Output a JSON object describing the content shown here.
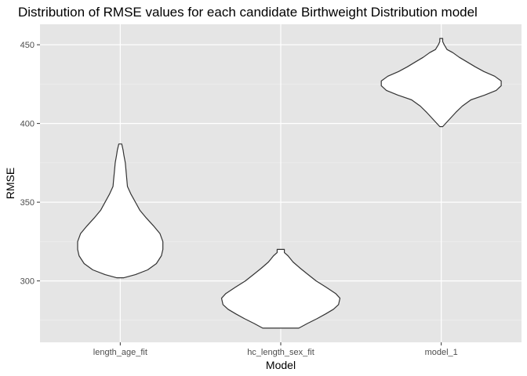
{
  "chart_data": {
    "type": "violin",
    "title": "Distribution of RMSE values for each candidate Birthweight Distribution model",
    "xlabel": "Model",
    "ylabel": "RMSE",
    "ylim": [
      261,
      463
    ],
    "yticks": [
      300,
      350,
      400,
      450
    ],
    "y_minor_ticks": [
      275,
      325,
      375,
      425
    ],
    "grid": true,
    "categories": [
      "length_age_fit",
      "hc_length_sex_fit",
      "model_1"
    ],
    "violins": [
      {
        "category": "length_age_fit",
        "min": 302,
        "max": 387,
        "profile": [
          [
            302,
            0.05
          ],
          [
            304,
            0.21
          ],
          [
            307,
            0.38
          ],
          [
            311,
            0.5
          ],
          [
            316,
            0.57
          ],
          [
            320,
            0.59
          ],
          [
            325,
            0.59
          ],
          [
            330,
            0.55
          ],
          [
            335,
            0.46
          ],
          [
            340,
            0.36
          ],
          [
            345,
            0.27
          ],
          [
            350,
            0.21
          ],
          [
            355,
            0.15
          ],
          [
            360,
            0.1
          ],
          [
            365,
            0.09
          ],
          [
            370,
            0.08
          ],
          [
            375,
            0.07
          ],
          [
            380,
            0.05
          ],
          [
            383,
            0.04
          ],
          [
            387,
            0.02
          ]
        ]
      },
      {
        "category": "hc_length_sex_fit",
        "min": 270,
        "max": 320,
        "profile": [
          [
            270,
            0.25
          ],
          [
            273,
            0.37
          ],
          [
            276,
            0.5
          ],
          [
            279,
            0.62
          ],
          [
            282,
            0.73
          ],
          [
            285,
            0.8
          ],
          [
            289,
            0.82
          ],
          [
            292,
            0.76
          ],
          [
            296,
            0.63
          ],
          [
            300,
            0.49
          ],
          [
            304,
            0.38
          ],
          [
            308,
            0.27
          ],
          [
            312,
            0.17
          ],
          [
            316,
            0.1
          ],
          [
            318,
            0.05
          ],
          [
            320,
            0.05
          ]
        ]
      },
      {
        "category": "model_1",
        "min": 398,
        "max": 454,
        "profile": [
          [
            398,
            0.02
          ],
          [
            400,
            0.06
          ],
          [
            403,
            0.12
          ],
          [
            407,
            0.2
          ],
          [
            411,
            0.29
          ],
          [
            415,
            0.41
          ],
          [
            418,
            0.6
          ],
          [
            421,
            0.76
          ],
          [
            424,
            0.83
          ],
          [
            427,
            0.83
          ],
          [
            430,
            0.74
          ],
          [
            433,
            0.59
          ],
          [
            436,
            0.47
          ],
          [
            439,
            0.36
          ],
          [
            442,
            0.25
          ],
          [
            445,
            0.16
          ],
          [
            447,
            0.08
          ],
          [
            450,
            0.04
          ],
          [
            452,
            0.02
          ],
          [
            454,
            0.02
          ]
        ]
      }
    ]
  }
}
